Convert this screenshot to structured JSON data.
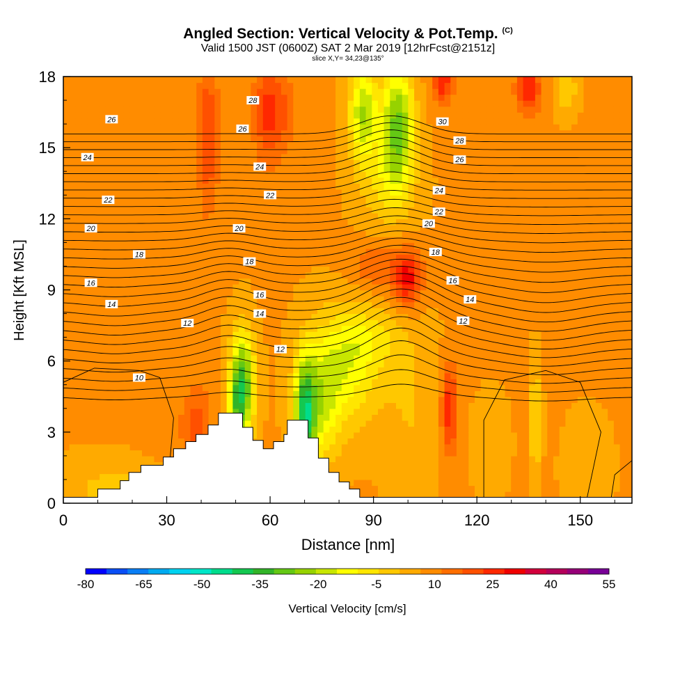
{
  "header": {
    "title": "Angled Section: Vertical Velocity & Pot.Temp.",
    "copyright": "(C)",
    "subtitle": "Valid 1500 JST (0600Z) SAT 2 Mar 2019 [12hrFcst@2151z]",
    "slice": "slice X,Y= 34,23@135°"
  },
  "chart_data": {
    "type": "heatmap",
    "xlabel": "Distance [nm]",
    "ylabel": "Height [Kft MSL]",
    "xlim": [
      0,
      165
    ],
    "ylim": [
      0,
      18
    ],
    "xticks": [
      0,
      30,
      60,
      90,
      120,
      150
    ],
    "yticks": [
      0,
      3,
      6,
      9,
      12,
      15,
      18
    ],
    "colorbar": {
      "label": "Vertical Velocity [cm/s]",
      "min": -80,
      "max": 55,
      "ticks": [
        -80,
        -65,
        -50,
        -35,
        -20,
        -5,
        10,
        25,
        40,
        55
      ],
      "colors": [
        "#0000ff",
        "#0a4ef5",
        "#0a7ef5",
        "#00aaf0",
        "#00d2f0",
        "#00e6c8",
        "#00dc8c",
        "#14c850",
        "#32b428",
        "#64c814",
        "#96d200",
        "#c8e600",
        "#ffff00",
        "#ffe600",
        "#ffc800",
        "#ffaa00",
        "#ff8c00",
        "#ff6e00",
        "#ff5000",
        "#ff2800",
        "#f00000",
        "#d2003c",
        "#b4005a",
        "#960078",
        "#780096"
      ]
    },
    "theta_contour_labels": [
      {
        "x": 22,
        "y": 5.3,
        "label": "10"
      },
      {
        "x": 36,
        "y": 7.6,
        "label": "12"
      },
      {
        "x": 63,
        "y": 6.5,
        "label": "12"
      },
      {
        "x": 116,
        "y": 7.7,
        "label": "12"
      },
      {
        "x": 14,
        "y": 8.4,
        "label": "14"
      },
      {
        "x": 57,
        "y": 8.0,
        "label": "14"
      },
      {
        "x": 118,
        "y": 8.6,
        "label": "14"
      },
      {
        "x": 8,
        "y": 9.3,
        "label": "16"
      },
      {
        "x": 57,
        "y": 8.8,
        "label": "16"
      },
      {
        "x": 113,
        "y": 9.4,
        "label": "16"
      },
      {
        "x": 22,
        "y": 10.5,
        "label": "18"
      },
      {
        "x": 54,
        "y": 10.2,
        "label": "18"
      },
      {
        "x": 108,
        "y": 10.6,
        "label": "18"
      },
      {
        "x": 8,
        "y": 11.6,
        "label": "20"
      },
      {
        "x": 51,
        "y": 11.6,
        "label": "20"
      },
      {
        "x": 106,
        "y": 11.8,
        "label": "20"
      },
      {
        "x": 13,
        "y": 12.8,
        "label": "22"
      },
      {
        "x": 60,
        "y": 13.0,
        "label": "22"
      },
      {
        "x": 109,
        "y": 12.3,
        "label": "22"
      },
      {
        "x": 7,
        "y": 14.6,
        "label": "24"
      },
      {
        "x": 57,
        "y": 14.2,
        "label": "24"
      },
      {
        "x": 109,
        "y": 13.2,
        "label": "24"
      },
      {
        "x": 14,
        "y": 16.2,
        "label": "26"
      },
      {
        "x": 52,
        "y": 15.8,
        "label": "26"
      },
      {
        "x": 115,
        "y": 14.5,
        "label": "26"
      },
      {
        "x": 55,
        "y": 17.0,
        "label": "28"
      },
      {
        "x": 115,
        "y": 15.3,
        "label": "28"
      },
      {
        "x": 110,
        "y": 16.1,
        "label": "30"
      }
    ],
    "terrain": [
      [
        0,
        0.25
      ],
      [
        10,
        0.25
      ],
      [
        10,
        0.6
      ],
      [
        16.5,
        0.6
      ],
      [
        16.5,
        0.95
      ],
      [
        19,
        0.95
      ],
      [
        19,
        1.3
      ],
      [
        22.5,
        1.3
      ],
      [
        22.5,
        1.6
      ],
      [
        29,
        1.6
      ],
      [
        29,
        1.95
      ],
      [
        32,
        1.95
      ],
      [
        32,
        2.3
      ],
      [
        35.5,
        2.3
      ],
      [
        35.5,
        2.6
      ],
      [
        38.5,
        2.6
      ],
      [
        38.5,
        2.9
      ],
      [
        42,
        2.9
      ],
      [
        42,
        3.3
      ],
      [
        45,
        3.3
      ],
      [
        45,
        3.8
      ],
      [
        52,
        3.8
      ],
      [
        52,
        3.2
      ],
      [
        55,
        3.2
      ],
      [
        55,
        2.65
      ],
      [
        58,
        2.65
      ],
      [
        58,
        2.3
      ],
      [
        61,
        2.3
      ],
      [
        61,
        2.6
      ],
      [
        64,
        2.6
      ],
      [
        64,
        2.9
      ],
      [
        65,
        2.9
      ],
      [
        65,
        3.5
      ],
      [
        71,
        3.5
      ],
      [
        71,
        2.75
      ],
      [
        74,
        2.75
      ],
      [
        74,
        1.9
      ],
      [
        77,
        1.9
      ],
      [
        77,
        1.3
      ],
      [
        80,
        1.3
      ],
      [
        80,
        0.9
      ],
      [
        83,
        0.9
      ],
      [
        83,
        0.6
      ],
      [
        86,
        0.6
      ],
      [
        86,
        0.25
      ],
      [
        165,
        0.25
      ]
    ]
  }
}
